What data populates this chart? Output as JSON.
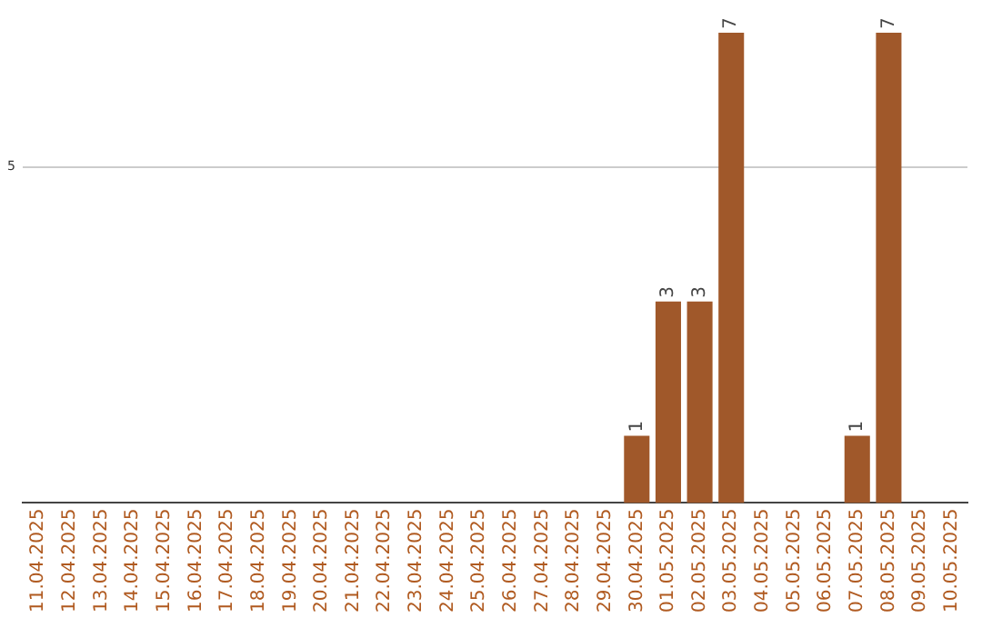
{
  "chart_data": {
    "type": "bar",
    "categories": [
      "11.04.2025",
      "12.04.2025",
      "13.04.2025",
      "14.04.2025",
      "15.04.2025",
      "16.04.2025",
      "17.04.2025",
      "18.04.2025",
      "19.04.2025",
      "20.04.2025",
      "21.04.2025",
      "22.04.2025",
      "23.04.2025",
      "24.04.2025",
      "25.04.2025",
      "26.04.2025",
      "27.04.2025",
      "28.04.2025",
      "29.04.2025",
      "30.04.2025",
      "01.05.2025",
      "02.05.2025",
      "03.05.2025",
      "04.05.2025",
      "05.05.2025",
      "06.05.2025",
      "07.05.2025",
      "08.05.2025",
      "09.05.2025",
      "10.05.2025"
    ],
    "values": [
      null,
      null,
      null,
      null,
      null,
      null,
      null,
      null,
      null,
      null,
      null,
      null,
      null,
      null,
      null,
      null,
      null,
      null,
      null,
      1,
      3,
      3,
      7,
      null,
      null,
      null,
      1,
      7,
      null,
      null
    ],
    "color": "#a0582a",
    "ylim": [
      0,
      7
    ],
    "yticks": [
      5
    ],
    "grid": "y",
    "data_labels": true,
    "legend": false
  }
}
